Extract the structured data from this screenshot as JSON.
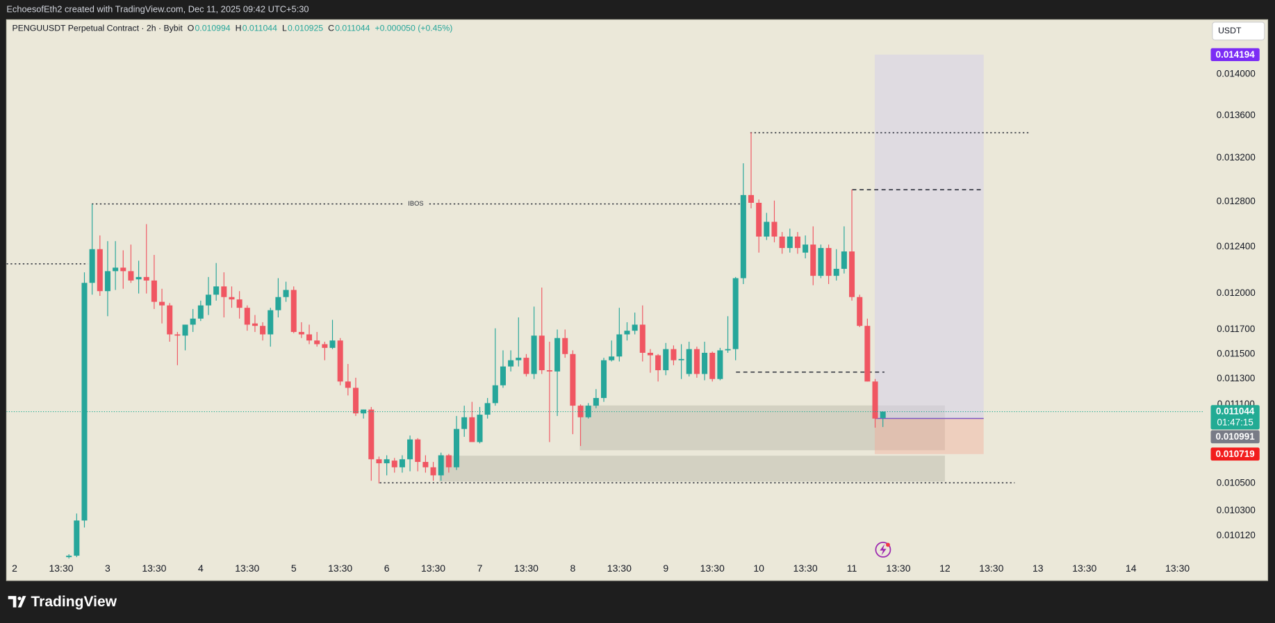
{
  "header": "EchoesofEth2 created with TradingView.com, Dec 11, 2025 09:42 UTC+5:30",
  "brand": "TradingView",
  "chart_data": {
    "type": "candlestick",
    "legend": {
      "symbol": "PENGUUSDT Perpetual Contract · 2h · Bybit",
      "fields": [
        {
          "key": "O",
          "value": 0.010994
        },
        {
          "key": "H",
          "value": 0.011044
        },
        {
          "key": "L",
          "value": 0.010925
        },
        {
          "key": "C",
          "value": 0.011044
        }
      ],
      "change": "+0.000050 (+0.45%)"
    },
    "currency_button": "USDT",
    "log_scale": true,
    "grid": false,
    "up_color": "#26a69a",
    "down_color": "#f05662",
    "xlim": [
      -2.1,
      306.7
    ],
    "ylim": [
      0.009954,
      0.014547
    ],
    "xticks": [
      {
        "value": 0,
        "label": "2"
      },
      {
        "value": 12,
        "label": "13:30"
      },
      {
        "value": 24,
        "label": "3"
      },
      {
        "value": 36,
        "label": "13:30"
      },
      {
        "value": 48,
        "label": "4"
      },
      {
        "value": 60,
        "label": "13:30"
      },
      {
        "value": 72,
        "label": "5"
      },
      {
        "value": 84,
        "label": "13:30"
      },
      {
        "value": 96,
        "label": "6"
      },
      {
        "value": 108,
        "label": "13:30"
      },
      {
        "value": 120,
        "label": "7"
      },
      {
        "value": 132,
        "label": "13:30"
      },
      {
        "value": 144,
        "label": "8"
      },
      {
        "value": 156,
        "label": "13:30"
      },
      {
        "value": 168,
        "label": "9"
      },
      {
        "value": 180,
        "label": "13:30"
      },
      {
        "value": 192,
        "label": "10"
      },
      {
        "value": 204,
        "label": "13:30"
      },
      {
        "value": 216,
        "label": "11"
      },
      {
        "value": 228,
        "label": "13:30"
      },
      {
        "value": 240,
        "label": "12"
      },
      {
        "value": 252,
        "label": "13:30"
      },
      {
        "value": 264,
        "label": "13"
      },
      {
        "value": 276,
        "label": "13:30"
      },
      {
        "value": 288,
        "label": "14"
      },
      {
        "value": 300,
        "label": "13:30"
      }
    ],
    "yticks": [
      {
        "value": 0.014,
        "label": "0.014000"
      },
      {
        "value": 0.0136,
        "label": "0.013600"
      },
      {
        "value": 0.0132,
        "label": "0.013200"
      },
      {
        "value": 0.0128,
        "label": "0.012800"
      },
      {
        "value": 0.0124,
        "label": "0.012400"
      },
      {
        "value": 0.012,
        "label": "0.012000"
      },
      {
        "value": 0.0117,
        "label": "0.011700"
      },
      {
        "value": 0.0115,
        "label": "0.011500"
      },
      {
        "value": 0.0113,
        "label": "0.011300"
      },
      {
        "value": 0.0111,
        "label": "0.011100"
      },
      {
        "value": 0.0105,
        "label": "0.010500"
      },
      {
        "value": 0.0103,
        "label": "0.010300"
      },
      {
        "value": 0.01012,
        "label": "0.010120"
      }
    ],
    "x": [
      14,
      16,
      18,
      20,
      22,
      24,
      26,
      28,
      30,
      32,
      34,
      36,
      38,
      40,
      42,
      44,
      46,
      48,
      50,
      52,
      54,
      56,
      58,
      60,
      62,
      64,
      66,
      68,
      70,
      72,
      74,
      76,
      78,
      80,
      82,
      84,
      86,
      88,
      90,
      92,
      94,
      96,
      98,
      100,
      102,
      104,
      106,
      108,
      110,
      112,
      114,
      116,
      118,
      120,
      122,
      124,
      126,
      128,
      130,
      132,
      134,
      136,
      138,
      140,
      142,
      144,
      146,
      148,
      150,
      152,
      154,
      156,
      158,
      160,
      162,
      164,
      166,
      168,
      170,
      172,
      174,
      176,
      178,
      180,
      182,
      184,
      186,
      188,
      190,
      192,
      194,
      196,
      198,
      200,
      202,
      204,
      206,
      208,
      210,
      212,
      214,
      216,
      218,
      220,
      222,
      224
    ],
    "ohlc": [
      [
        0.00997,
        0.00999,
        0.00996,
        0.00998
      ],
      [
        0.00998,
        0.01028,
        0.00997,
        0.01023
      ],
      [
        0.01023,
        0.01218,
        0.01018,
        0.01209
      ],
      [
        0.01209,
        0.01278,
        0.01199,
        0.01238
      ],
      [
        0.01238,
        0.0125,
        0.01198,
        0.01202
      ],
      [
        0.01202,
        0.01245,
        0.01181,
        0.01219
      ],
      [
        0.01219,
        0.01245,
        0.01203,
        0.01222
      ],
      [
        0.01222,
        0.01237,
        0.01204,
        0.01219
      ],
      [
        0.01219,
        0.01242,
        0.01209,
        0.01211
      ],
      [
        0.01212,
        0.01228,
        0.012,
        0.01214
      ],
      [
        0.01214,
        0.0126,
        0.012,
        0.01211
      ],
      [
        0.01211,
        0.01233,
        0.01187,
        0.01193
      ],
      [
        0.01193,
        0.01204,
        0.01175,
        0.0119
      ],
      [
        0.0119,
        0.01192,
        0.0116,
        0.01166
      ],
      [
        0.01166,
        0.01168,
        0.01141,
        0.01165
      ],
      [
        0.01165,
        0.01174,
        0.01153,
        0.01174
      ],
      [
        0.01174,
        0.01187,
        0.01168,
        0.01179
      ],
      [
        0.01179,
        0.01194,
        0.01177,
        0.0119
      ],
      [
        0.0119,
        0.01214,
        0.01182,
        0.01199
      ],
      [
        0.01199,
        0.01226,
        0.01194,
        0.01206
      ],
      [
        0.01206,
        0.01218,
        0.0118,
        0.01197
      ],
      [
        0.01197,
        0.01206,
        0.01188,
        0.01195
      ],
      [
        0.01195,
        0.01202,
        0.01179,
        0.01188
      ],
      [
        0.01188,
        0.0119,
        0.01169,
        0.01174
      ],
      [
        0.01175,
        0.01182,
        0.01168,
        0.01173
      ],
      [
        0.01173,
        0.01176,
        0.01161,
        0.01166
      ],
      [
        0.01166,
        0.01188,
        0.01156,
        0.01186
      ],
      [
        0.01186,
        0.01213,
        0.0118,
        0.01197
      ],
      [
        0.01197,
        0.0121,
        0.01193,
        0.01203
      ],
      [
        0.01203,
        0.01206,
        0.01167,
        0.01168
      ],
      [
        0.01168,
        0.01176,
        0.01163,
        0.01166
      ],
      [
        0.01166,
        0.01174,
        0.01158,
        0.01161
      ],
      [
        0.01161,
        0.01168,
        0.01156,
        0.01158
      ],
      [
        0.01158,
        0.0116,
        0.01145,
        0.01155
      ],
      [
        0.01155,
        0.01178,
        0.01154,
        0.01161
      ],
      [
        0.01161,
        0.01163,
        0.01125,
        0.01128
      ],
      [
        0.01128,
        0.01142,
        0.01117,
        0.01123
      ],
      [
        0.01123,
        0.01131,
        0.01101,
        0.01103
      ],
      [
        0.01103,
        0.01106,
        0.01099,
        0.01106
      ],
      [
        0.01106,
        0.01108,
        0.01052,
        0.01068
      ],
      [
        0.01068,
        0.0107,
        0.0105,
        0.01065
      ],
      [
        0.01065,
        0.01071,
        0.01056,
        0.01068
      ],
      [
        0.01067,
        0.01069,
        0.01058,
        0.01062
      ],
      [
        0.01062,
        0.01071,
        0.01058,
        0.01068
      ],
      [
        0.01068,
        0.01086,
        0.01059,
        0.01083
      ],
      [
        0.01083,
        0.01084,
        0.01059,
        0.01066
      ],
      [
        0.01066,
        0.01071,
        0.01058,
        0.01062
      ],
      [
        0.01062,
        0.01066,
        0.01052,
        0.01056
      ],
      [
        0.01056,
        0.01073,
        0.01052,
        0.01071
      ],
      [
        0.01071,
        0.01072,
        0.01058,
        0.01062
      ],
      [
        0.01062,
        0.01101,
        0.0106,
        0.01091
      ],
      [
        0.01091,
        0.01109,
        0.01085,
        0.011
      ],
      [
        0.011,
        0.01112,
        0.01081,
        0.01081
      ],
      [
        0.01081,
        0.01108,
        0.0108,
        0.01102
      ],
      [
        0.01102,
        0.01115,
        0.01099,
        0.01111
      ],
      [
        0.01111,
        0.01171,
        0.01109,
        0.01125
      ],
      [
        0.01125,
        0.01153,
        0.01123,
        0.0114
      ],
      [
        0.0114,
        0.01153,
        0.01136,
        0.01145
      ],
      [
        0.01145,
        0.0118,
        0.0114,
        0.01147
      ],
      [
        0.01147,
        0.0115,
        0.01132,
        0.01134
      ],
      [
        0.01134,
        0.01189,
        0.0113,
        0.01165
      ],
      [
        0.01165,
        0.01205,
        0.01134,
        0.01137
      ],
      [
        0.01137,
        0.0116,
        0.01081,
        0.01136
      ],
      [
        0.01136,
        0.0117,
        0.01101,
        0.01163
      ],
      [
        0.01163,
        0.0117,
        0.01147,
        0.0115
      ],
      [
        0.0115,
        0.01153,
        0.01087,
        0.01109
      ],
      [
        0.01109,
        0.0111,
        0.01078,
        0.011
      ],
      [
        0.011,
        0.01111,
        0.01099,
        0.01109
      ],
      [
        0.01109,
        0.01122,
        0.01107,
        0.01115
      ],
      [
        0.01115,
        0.01147,
        0.01112,
        0.01145
      ],
      [
        0.01145,
        0.01161,
        0.01144,
        0.01148
      ],
      [
        0.01148,
        0.01188,
        0.01144,
        0.01166
      ],
      [
        0.01166,
        0.01176,
        0.01161,
        0.01169
      ],
      [
        0.01169,
        0.01184,
        0.01166,
        0.01174
      ],
      [
        0.01174,
        0.0119,
        0.01144,
        0.01151
      ],
      [
        0.01151,
        0.01154,
        0.01135,
        0.01149
      ],
      [
        0.01149,
        0.0115,
        0.01128,
        0.01137
      ],
      [
        0.01137,
        0.01159,
        0.01133,
        0.01154
      ],
      [
        0.01154,
        0.01157,
        0.01141,
        0.01145
      ],
      [
        0.01145,
        0.01158,
        0.0113,
        0.01146
      ],
      [
        0.01134,
        0.0116,
        0.01132,
        0.01154
      ],
      [
        0.01154,
        0.01156,
        0.01131,
        0.01134
      ],
      [
        0.01134,
        0.0116,
        0.01129,
        0.01151
      ],
      [
        0.01151,
        0.01152,
        0.01128,
        0.0113
      ],
      [
        0.0113,
        0.01155,
        0.01129,
        0.01153
      ],
      [
        0.01153,
        0.01181,
        0.01151,
        0.01154
      ],
      [
        0.01154,
        0.01214,
        0.01145,
        0.01213
      ],
      [
        0.01213,
        0.01315,
        0.01208,
        0.01286
      ],
      [
        0.01286,
        0.01344,
        0.01274,
        0.01279
      ],
      [
        0.01279,
        0.01282,
        0.01235,
        0.01249
      ],
      [
        0.01249,
        0.0127,
        0.01246,
        0.01262
      ],
      [
        0.01262,
        0.01281,
        0.01244,
        0.01249
      ],
      [
        0.01249,
        0.01253,
        0.01234,
        0.01239
      ],
      [
        0.01239,
        0.01256,
        0.01235,
        0.01249
      ],
      [
        0.01249,
        0.01253,
        0.01234,
        0.01239
      ],
      [
        0.01235,
        0.0125,
        0.0123,
        0.01242
      ],
      [
        0.01242,
        0.01258,
        0.01207,
        0.01215
      ],
      [
        0.01215,
        0.01242,
        0.01213,
        0.01239
      ],
      [
        0.01239,
        0.01242,
        0.01208,
        0.01215
      ],
      [
        0.01215,
        0.01238,
        0.01211,
        0.01221
      ],
      [
        0.01221,
        0.01258,
        0.01217,
        0.01236
      ],
      [
        0.01236,
        0.01291,
        0.01194,
        0.01197
      ],
      [
        0.01197,
        0.01199,
        0.01172,
        0.01173
      ],
      [
        0.01173,
        0.01179,
        0.01128,
        0.01128
      ],
      [
        0.01128,
        0.0113,
        0.01092,
        0.01099
      ],
      [
        0.010994,
        0.011044,
        0.010925,
        0.011044
      ]
    ],
    "levels": [
      {
        "value": 0.012253,
        "x": [
          -2.1,
          18.9
        ],
        "style": "dotted",
        "color": "#2a2e39"
      },
      {
        "value": 0.01278,
        "x": [
          19.9,
          187.1
        ],
        "style": "dotted",
        "color": "#2a2e39",
        "label": "IBOS"
      },
      {
        "value": 0.013436,
        "x": [
          189.8,
          261.6
        ],
        "style": "dotted",
        "color": "#2a2e39"
      },
      {
        "value": 0.012908,
        "x": [
          216.1,
          250.0
        ],
        "style": "dashed",
        "color": "#2a2e39"
      },
      {
        "value": 0.011355,
        "x": [
          186.1,
          224.4
        ],
        "style": "dashed",
        "color": "#2a2e39"
      },
      {
        "value": 0.010505,
        "x": [
          94.2,
          258.0
        ],
        "style": "dotted",
        "color": "#2a2e39"
      },
      {
        "value": 0.010991,
        "x": [
          221.9,
          250.0
        ],
        "style": "solid",
        "color": "#7e57c2"
      }
    ],
    "zones": [
      {
        "y": [
          0.010748,
          0.011092
        ],
        "x": [
          145.8,
          240.0
        ],
        "color": "rgba(178,176,162,0.42)"
      },
      {
        "y": [
          0.010514,
          0.010707
        ],
        "x": [
          109.5,
          240.0
        ],
        "color": "rgba(178,176,162,0.42)"
      },
      {
        "y": [
          0.010991,
          0.014194
        ],
        "x": [
          221.9,
          250.0
        ],
        "color": "rgba(214,208,232,0.55)"
      },
      {
        "y": [
          0.010719,
          0.010991
        ],
        "x": [
          221.9,
          250.0
        ],
        "color": "rgba(244,166,146,0.38)"
      }
    ],
    "price_labels": [
      {
        "value": 0.014194,
        "color": "#7b2cf5"
      },
      {
        "value": 0.011044,
        "color": "#22ab94",
        "countdown": "01:47:15"
      },
      {
        "value": 0.010991,
        "color": "#787b86"
      },
      {
        "value": 0.010719,
        "color": "#f21c1c"
      }
    ]
  }
}
